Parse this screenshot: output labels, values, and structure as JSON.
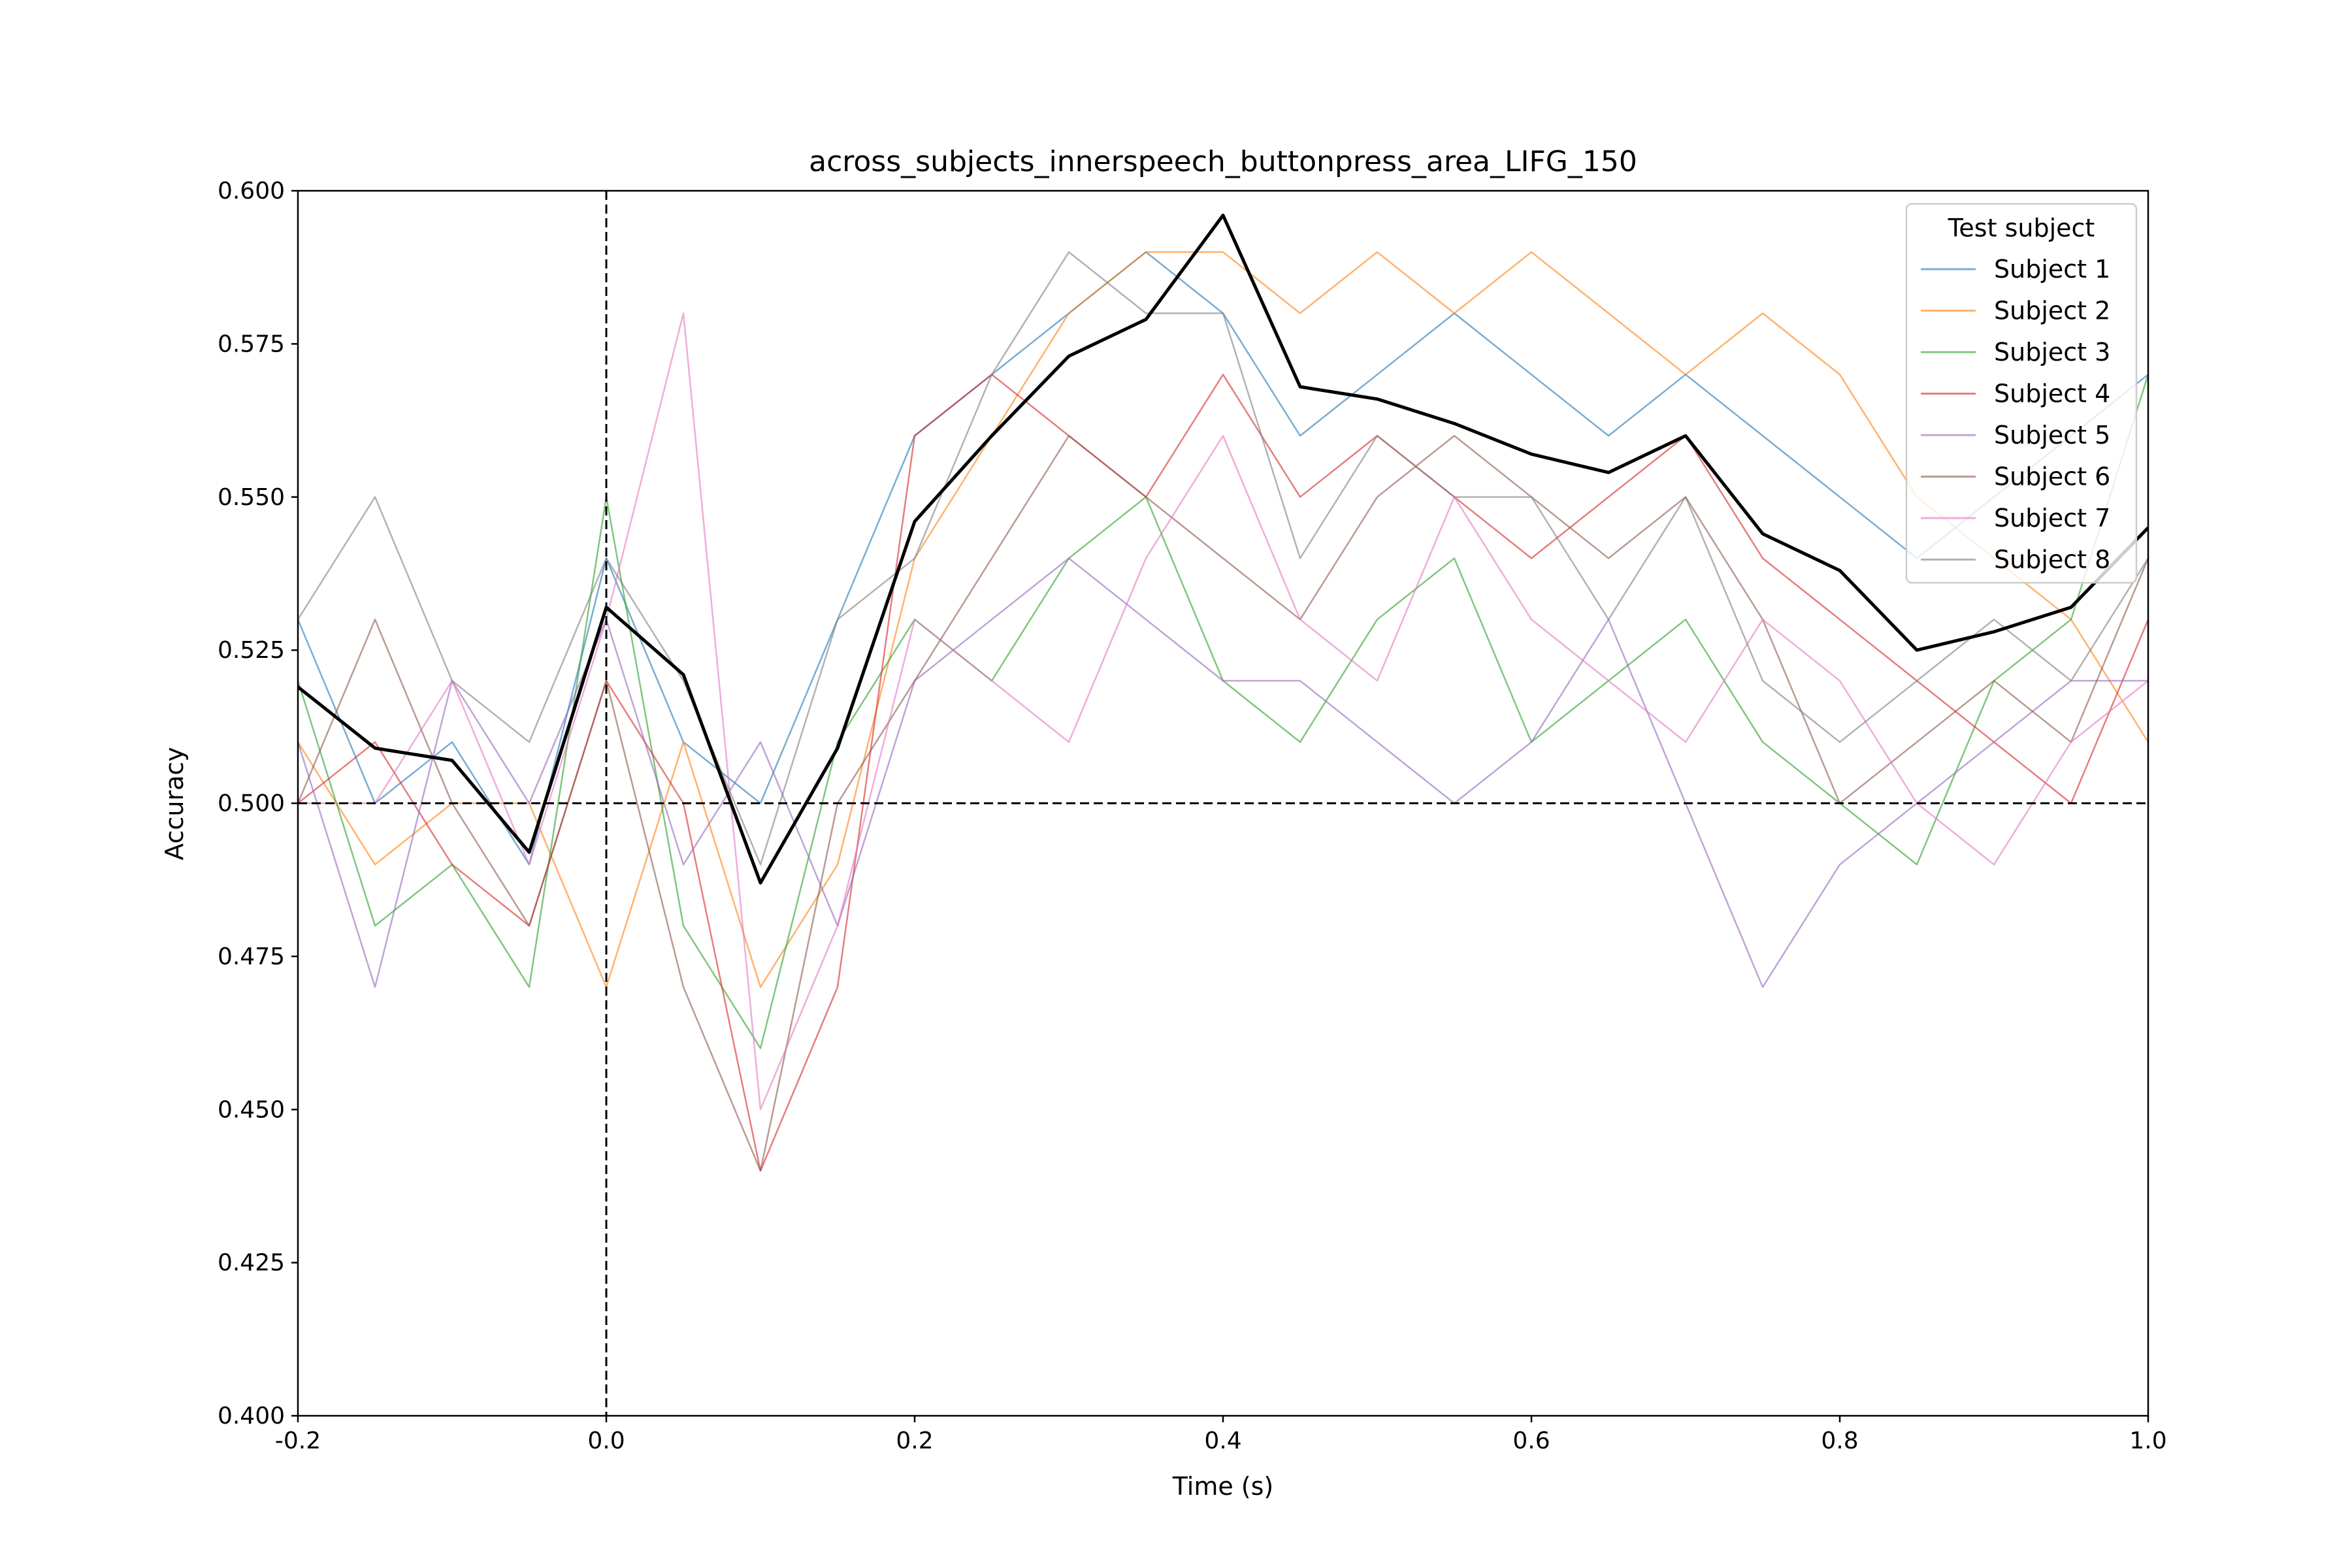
{
  "chart_data": {
    "type": "line",
    "title": "across_subjects_innerspeech_buttonpress_area_LIFG_150",
    "xlabel": "Time (s)",
    "ylabel": "Accuracy",
    "xlim": [
      -0.2,
      1.0
    ],
    "ylim": [
      0.4,
      0.6
    ],
    "xticks": [
      -0.2,
      0.0,
      0.2,
      0.4,
      0.6,
      0.8,
      1.0
    ],
    "xtick_labels": [
      "-0.2",
      "0.0",
      "0.2",
      "0.4",
      "0.6",
      "0.8",
      "1.0"
    ],
    "yticks": [
      0.4,
      0.425,
      0.45,
      0.475,
      0.5,
      0.525,
      0.55,
      0.575,
      0.6
    ],
    "ytick_labels": [
      "0.400",
      "0.425",
      "0.450",
      "0.475",
      "0.500",
      "0.525",
      "0.550",
      "0.575",
      "0.600"
    ],
    "grid": false,
    "reference_lines": [
      {
        "orientation": "horizontal",
        "value": 0.5,
        "style": "dashed"
      },
      {
        "orientation": "vertical",
        "value": 0.0,
        "style": "dashed"
      }
    ],
    "legend": {
      "title": "Test subject",
      "placement": "top-right"
    },
    "x": [
      -0.2,
      -0.15,
      -0.1,
      -0.05,
      0.0,
      0.05,
      0.1,
      0.15,
      0.2,
      0.25,
      0.3,
      0.35,
      0.4,
      0.45,
      0.5,
      0.55,
      0.6,
      0.65,
      0.7,
      0.75,
      0.8,
      0.85,
      0.9,
      0.95,
      1.0
    ],
    "series": [
      {
        "name": "Subject 1",
        "color": "#1f77b4",
        "values": [
          0.53,
          0.5,
          0.51,
          0.49,
          0.54,
          0.51,
          0.5,
          0.53,
          0.56,
          0.57,
          0.58,
          0.59,
          0.58,
          0.56,
          0.57,
          0.58,
          0.57,
          0.56,
          0.57,
          0.56,
          0.55,
          0.54,
          0.55,
          0.56,
          0.57
        ]
      },
      {
        "name": "Subject 2",
        "color": "#ff7f0e",
        "values": [
          0.51,
          0.49,
          0.5,
          0.5,
          0.47,
          0.51,
          0.47,
          0.49,
          0.54,
          0.56,
          0.58,
          0.59,
          0.59,
          0.58,
          0.59,
          0.58,
          0.59,
          0.58,
          0.57,
          0.58,
          0.57,
          0.55,
          0.54,
          0.53,
          0.51
        ]
      },
      {
        "name": "Subject 3",
        "color": "#2ca02c",
        "values": [
          0.52,
          0.48,
          0.49,
          0.47,
          0.55,
          0.48,
          0.46,
          0.51,
          0.53,
          0.52,
          0.54,
          0.55,
          0.52,
          0.51,
          0.53,
          0.54,
          0.51,
          0.52,
          0.53,
          0.51,
          0.5,
          0.49,
          0.52,
          0.53,
          0.57
        ]
      },
      {
        "name": "Subject 4",
        "color": "#d62728",
        "values": [
          0.5,
          0.51,
          0.49,
          0.48,
          0.52,
          0.5,
          0.44,
          0.47,
          0.56,
          0.57,
          0.56,
          0.55,
          0.57,
          0.55,
          0.56,
          0.55,
          0.54,
          0.55,
          0.56,
          0.54,
          0.53,
          0.52,
          0.51,
          0.5,
          0.53
        ]
      },
      {
        "name": "Subject 5",
        "color": "#9467bd",
        "values": [
          0.51,
          0.47,
          0.52,
          0.5,
          0.53,
          0.49,
          0.51,
          0.48,
          0.52,
          0.53,
          0.54,
          0.53,
          0.52,
          0.52,
          0.51,
          0.5,
          0.51,
          0.53,
          0.5,
          0.47,
          0.49,
          0.5,
          0.51,
          0.52,
          0.52
        ]
      },
      {
        "name": "Subject 6",
        "color": "#8c564b",
        "values": [
          0.5,
          0.53,
          0.5,
          0.48,
          0.52,
          0.47,
          0.44,
          0.5,
          0.52,
          0.54,
          0.56,
          0.55,
          0.54,
          0.53,
          0.55,
          0.56,
          0.55,
          0.54,
          0.55,
          0.53,
          0.5,
          0.51,
          0.52,
          0.51,
          0.54
        ]
      },
      {
        "name": "Subject 7",
        "color": "#e377c2",
        "values": [
          0.5,
          0.5,
          0.52,
          0.49,
          0.53,
          0.58,
          0.45,
          0.48,
          0.53,
          0.52,
          0.51,
          0.54,
          0.56,
          0.53,
          0.52,
          0.55,
          0.53,
          0.52,
          0.51,
          0.53,
          0.52,
          0.5,
          0.49,
          0.51,
          0.52
        ]
      },
      {
        "name": "Subject 8",
        "color": "#7f7f7f",
        "values": [
          0.53,
          0.55,
          0.52,
          0.51,
          0.54,
          0.52,
          0.49,
          0.53,
          0.54,
          0.57,
          0.59,
          0.58,
          0.58,
          0.54,
          0.56,
          0.55,
          0.55,
          0.53,
          0.55,
          0.52,
          0.51,
          0.52,
          0.53,
          0.52,
          0.54
        ]
      },
      {
        "name": "",
        "color": "#000000",
        "values": [
          0.519,
          0.509,
          0.507,
          0.492,
          0.532,
          0.521,
          0.487,
          0.509,
          0.546,
          0.56,
          0.573,
          0.579,
          0.596,
          0.568,
          0.566,
          0.562,
          0.557,
          0.554,
          0.56,
          0.544,
          0.538,
          0.525,
          0.528,
          0.532,
          0.545
        ]
      }
    ]
  }
}
